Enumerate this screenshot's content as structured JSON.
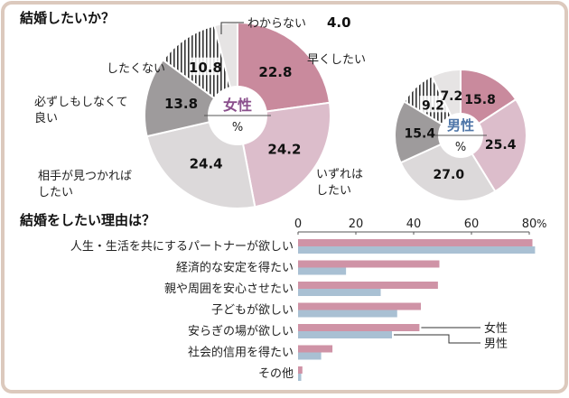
{
  "chart_data": [
    {
      "type": "pie",
      "title": "結婚したいか？",
      "center_label": "女性",
      "unit": "%",
      "categories": [
        "早くしたい",
        "いずれはしたい",
        "相手が見つかればしたい",
        "必ずしもしなくて良い",
        "したくない",
        "わからない"
      ],
      "values": [
        22.8,
        24.2,
        24.4,
        13.8,
        10.8,
        4.0
      ],
      "value_labels": [
        "22.8",
        "24.2",
        "24.4",
        "13.8",
        "10.8",
        "4.0"
      ],
      "label_lines": [
        [
          "早くしたい"
        ],
        [
          "いずれは",
          "したい"
        ],
        [
          "相手が見つかれば",
          "したい"
        ],
        [
          "必ずしもしなくて",
          "良い"
        ],
        [
          "したくない"
        ],
        [
          "わからない"
        ]
      ],
      "colors": [
        "#c98a9d",
        "#dcbdcb",
        "#dcd9da",
        "#9e9b9c",
        "hatch",
        "#e6e4e4"
      ],
      "center_color": "#8a4f8c"
    },
    {
      "type": "pie",
      "center_label": "男性",
      "unit": "%",
      "categories": [
        "早くしたい",
        "いずれはしたい",
        "相手が見つかればしたい",
        "必ずしもしなくて良い",
        "したくない",
        "わからない"
      ],
      "values": [
        15.8,
        25.4,
        27.0,
        15.4,
        9.2,
        7.2
      ],
      "value_labels": [
        "15.8",
        "25.4",
        "27.0",
        "15.4",
        "9.2",
        "7.2"
      ],
      "colors": [
        "#c98a9d",
        "#dcbdcb",
        "#dcd9da",
        "#9e9b9c",
        "hatch",
        "#e6e4e4"
      ],
      "center_color": "#4f76a8"
    },
    {
      "type": "bar",
      "orientation": "horizontal",
      "title": "結婚をしたい理由は？",
      "categories": [
        "人生・生活を共にするパートナーが欲しい",
        "経済的な安定を得たい",
        "親や周囲を安心させたい",
        "子どもが欲しい",
        "安らぎの場が欲しい",
        "社会的信用を得たい",
        "その他"
      ],
      "series": [
        {
          "name": "女性",
          "values": [
            81.1,
            48.9,
            48.4,
            42.5,
            42.0,
            11.9,
            1.5
          ],
          "color": "#cf93a6"
        },
        {
          "name": "男性",
          "values": [
            82.0,
            16.6,
            28.6,
            34.3,
            32.5,
            8.0,
            1.1
          ],
          "color": "#a9c0d3"
        }
      ],
      "xlim": [
        0,
        80
      ],
      "xticks": [
        "0",
        "20",
        "40",
        "60",
        "80"
      ],
      "xunit": "%",
      "grid": false,
      "legend": "right"
    }
  ]
}
